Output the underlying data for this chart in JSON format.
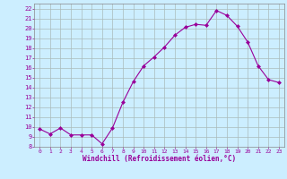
{
  "x": [
    0,
    1,
    2,
    3,
    4,
    5,
    6,
    7,
    8,
    9,
    10,
    11,
    12,
    13,
    14,
    15,
    16,
    17,
    18,
    19,
    20,
    21,
    22,
    23
  ],
  "y": [
    9.8,
    9.3,
    9.9,
    9.2,
    9.2,
    9.2,
    8.3,
    9.9,
    12.5,
    14.6,
    16.2,
    17.1,
    18.1,
    19.3,
    20.1,
    20.4,
    20.3,
    21.8,
    21.3,
    20.2,
    18.6,
    16.2,
    14.8,
    14.5
  ],
  "line_color": "#990099",
  "marker": "D",
  "marker_size": 2.0,
  "bg_color": "#cceeff",
  "grid_color": "#aabbbb",
  "xlabel": "Windchill (Refroidissement éolien,°C)",
  "xlabel_color": "#990099",
  "xtick_color": "#990099",
  "ytick_color": "#990099",
  "xlim": [
    -0.5,
    23.5
  ],
  "ylim": [
    8,
    22.5
  ],
  "xticks": [
    0,
    1,
    2,
    3,
    4,
    5,
    6,
    7,
    8,
    9,
    10,
    11,
    12,
    13,
    14,
    15,
    16,
    17,
    18,
    19,
    20,
    21,
    22,
    23
  ],
  "yticks": [
    8,
    9,
    10,
    11,
    12,
    13,
    14,
    15,
    16,
    17,
    18,
    19,
    20,
    21,
    22
  ],
  "spine_color": "#888888"
}
